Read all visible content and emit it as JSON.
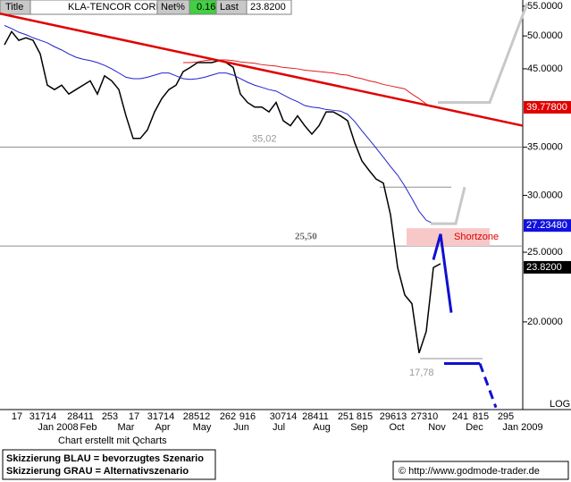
{
  "header": {
    "title_label": "Title",
    "symbol": "KLA-TENCOR CORP",
    "net_label": "Net%",
    "net_value": "0.16",
    "last_label": "Last",
    "last_value": "23.8200"
  },
  "chart_data": {
    "type": "line",
    "log_scale": true,
    "ylim": [
      15.1,
      56.1
    ],
    "yticks": [
      {
        "value": 55,
        "label": "55.0000"
      },
      {
        "value": 50,
        "label": "50.0000"
      },
      {
        "value": 45,
        "label": "45.0000"
      },
      {
        "value": 35,
        "label": "35.0000"
      },
      {
        "value": 30,
        "label": "30.0000"
      },
      {
        "value": 25,
        "label": "25.0000"
      },
      {
        "value": 20,
        "label": "20.0000"
      }
    ],
    "series": [
      {
        "color": "#000000",
        "values": [
          48.6,
          50.7,
          49.3,
          49.7,
          49.3,
          47.2,
          42.7,
          42.1,
          42.7,
          41.5,
          42.1,
          42.7,
          43.3,
          41.5,
          44.0,
          43.3,
          42.1,
          38.7,
          36.0,
          36.0,
          37.0,
          39.2,
          40.9,
          42.1,
          42.7,
          44.6,
          45.2,
          45.9,
          45.9,
          45.9,
          46.2,
          45.9,
          45.2,
          41.5,
          40.4,
          39.8,
          39.8,
          39.2,
          40.4,
          38.1,
          37.5,
          38.7,
          37.5,
          36.5,
          37.5,
          39.2,
          39.2,
          38.7,
          38.1,
          35.5,
          33.5,
          32.5,
          31.6,
          31.2,
          28.2,
          23.8,
          21.8,
          21.2,
          18.1,
          19.4,
          23.8,
          24.1
        ]
      },
      {
        "color": "#2020d0",
        "values": [
          51.7,
          51.2,
          50.6,
          50.2,
          49.7,
          49.3,
          48.9,
          48.3,
          47.8,
          47.2,
          46.7,
          46.4,
          46.2,
          45.9,
          45.5,
          45.0,
          44.4,
          43.8,
          43.6,
          43.6,
          43.8,
          44.1,
          44.4,
          44.4,
          44.0,
          43.6,
          43.5,
          43.6,
          43.8,
          44.1,
          44.4,
          44.4,
          44.1,
          43.6,
          43.1,
          42.7,
          42.4,
          42.1,
          41.9,
          41.4,
          40.9,
          40.5,
          40.0,
          39.8,
          39.7,
          39.5,
          39.4,
          39.3,
          38.9,
          38.0,
          36.9,
          35.9,
          34.9,
          33.9,
          32.9,
          32.0,
          30.9,
          29.7,
          28.5,
          27.7,
          27.4,
          null
        ]
      },
      {
        "color": "#e02020",
        "values": [
          null,
          null,
          null,
          null,
          null,
          null,
          null,
          null,
          null,
          null,
          null,
          null,
          null,
          null,
          null,
          null,
          null,
          null,
          null,
          null,
          null,
          null,
          null,
          null,
          null,
          45.9,
          45.9,
          46.0,
          46.2,
          46.3,
          46.3,
          46.3,
          46.2,
          46.0,
          45.9,
          45.8,
          45.6,
          45.5,
          45.4,
          45.2,
          45.1,
          45.0,
          44.8,
          44.7,
          44.6,
          44.5,
          44.4,
          44.2,
          44.1,
          43.8,
          43.6,
          43.3,
          43.1,
          42.8,
          42.6,
          42.4,
          42.2,
          41.5,
          40.9,
          40.2,
          39.8,
          null
        ]
      }
    ],
    "trendline": {
      "color": "#e00000",
      "values": [
        53.7,
        37.5
      ]
    },
    "scenarios": [
      {
        "color": "#1010d0",
        "values": [
          24.4,
          26.5,
          20.6
        ]
      },
      {
        "color": "#1010d0",
        "values": [
          17.5,
          17.5
        ]
      },
      {
        "color": "#1010d0",
        "dashed": true,
        "values": [
          17.5,
          15.2
        ]
      },
      {
        "color": "#c8c8c8",
        "values": [
          40.4,
          40.4,
          55.5
        ]
      },
      {
        "color": "#c8c8c8",
        "values": [
          27.4,
          27.4,
          30.8
        ]
      }
    ],
    "guide": {
      "value": 30.8
    },
    "levels": [
      {
        "value": 35.02,
        "label": "35,02"
      },
      {
        "value": 25.5,
        "label": "25,50"
      },
      {
        "value": 17.78,
        "label": "17,78"
      }
    ],
    "shortzone": {
      "label": "Shortzone",
      "low": 25.5,
      "high": 27.0
    },
    "price_tags": [
      {
        "value": 39.778,
        "label": "39.77800",
        "color": "#e00000"
      },
      {
        "value": 27.2348,
        "label": "27.23480",
        "color": "#1010e0"
      },
      {
        "value": 23.82,
        "label": "23.8200",
        "color": "#000000"
      }
    ],
    "day_labels": [
      "17",
      "31714",
      "28411",
      "253",
      "17",
      "31714",
      "28512",
      "262",
      "916",
      "30714",
      "28411",
      "251",
      "815",
      "29613",
      "27310",
      "241",
      "815",
      "295"
    ],
    "month_labels": [
      "Jan 2008",
      "Feb",
      "Mar",
      "Apr",
      "May",
      "Jun",
      "Jul",
      "Aug",
      "Sep",
      "Oct",
      "Nov",
      "Dec",
      "Jan 2009"
    ],
    "log_label": "LOG"
  },
  "footer": {
    "credit": "Chart erstellt mit Qcharts",
    "legend_blue": "Skizzierung BLAU = bevorzugtes Szenario",
    "legend_gray": "Skizzierung GRAU = Alternativszenario",
    "source": "© http://www.godmode-trader.de"
  }
}
